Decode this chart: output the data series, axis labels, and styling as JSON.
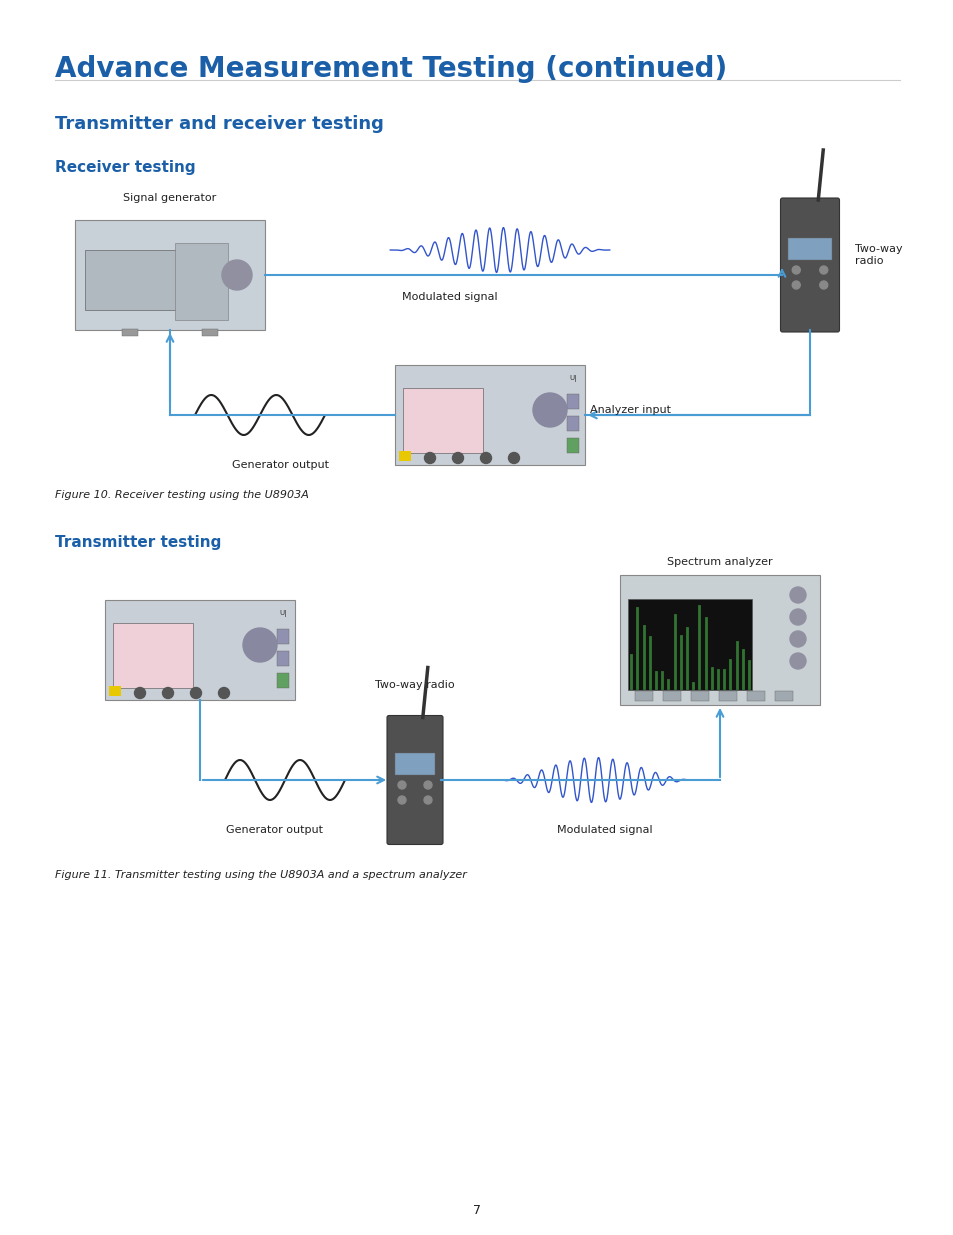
{
  "title": "Advance Measurement Testing (continued)",
  "subtitle": "Transmitter and receiver testing",
  "section1_title": "Receiver testing",
  "section2_title": "Transmitter testing",
  "figure1_caption": "Figure 10. Receiver testing using the U8903A",
  "figure2_caption": "Figure 11. Transmitter testing using the U8903A and a spectrum analyzer",
  "title_color": "#1a5fa8",
  "subtitle_color": "#1a5fa8",
  "section_color": "#1a5fa8",
  "arrow_color": "#4a9cd4",
  "signal_wave_color": "#3355cc",
  "gen_wave_color": "#222222",
  "bg_color": "#ffffff",
  "page_number": "7",
  "labels": {
    "signal_generator": "Signal generator",
    "two_way_radio_top": "Two-way\nradio",
    "modulated_signal_top": "Modulated signal",
    "generator_output_top": "Generator output",
    "analyzer_input": "Analyzer input",
    "spectrum_analyzer": "Spectrum analyzer",
    "two_way_radio_bottom": "Two-way radio",
    "generator_output_bottom": "Generator output",
    "modulated_signal_bottom": "Modulated signal"
  }
}
